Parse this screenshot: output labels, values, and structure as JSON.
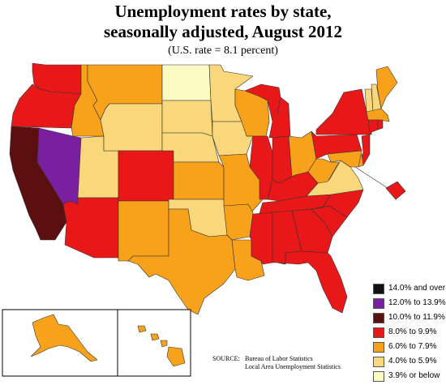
{
  "title_line1": "Unemployment rates by state,",
  "title_line2": "seasonally adjusted, August 2012",
  "subtitle": "(U.S. rate = 8.1 percent)",
  "legend": [
    {
      "label": "14.0% and over",
      "color": "#111111"
    },
    {
      "label": "12.0% to 13.9%",
      "color": "#7a1fa0"
    },
    {
      "label": "10.0% to 11.9%",
      "color": "#5c0f0f"
    },
    {
      "label": "8.0% to 9.9%",
      "color": "#e81818"
    },
    {
      "label": "6.0% to 7.9%",
      "color": "#f7a21a"
    },
    {
      "label": "4.0% to 5.9%",
      "color": "#f9d77a"
    },
    {
      "label": "3.9% or below",
      "color": "#fdfbc4"
    }
  ],
  "source": {
    "label": "SOURCE:",
    "line1": "Bureau of Labor Statistics",
    "line2": "Local Area Unemployment Statistics"
  },
  "state_classes": {
    "WA": 3,
    "OR": 3,
    "CA": 2,
    "NV": 1,
    "ID": 4,
    "MT": 4,
    "WY": 5,
    "UT": 5,
    "AZ": 3,
    "CO": 3,
    "NM": 4,
    "ND": 6,
    "SD": 5,
    "NE": 5,
    "KS": 4,
    "OK": 5,
    "TX": 4,
    "MN": 5,
    "IA": 5,
    "MO": 4,
    "AR": 4,
    "LA": 4,
    "WI": 4,
    "IL": 3,
    "MI": 3,
    "IN": 3,
    "OH": 4,
    "KY": 3,
    "TN": 3,
    "MS": 3,
    "AL": 3,
    "GA": 3,
    "FL": 3,
    "SC": 3,
    "NC": 3,
    "VA": 5,
    "WV": 4,
    "PA": 3,
    "NY": 3,
    "VT": 5,
    "NH": 5,
    "ME": 4,
    "MA": 4,
    "RI": 3,
    "CT": 3,
    "NJ": 3,
    "DE": 4,
    "MD": 4,
    "DC": 3,
    "AK": 4,
    "HI": 4
  }
}
